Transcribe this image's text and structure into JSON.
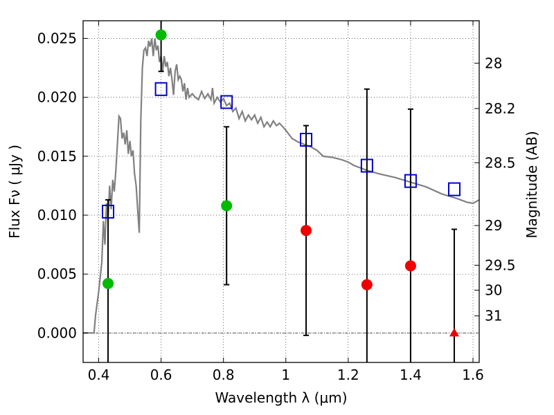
{
  "chart_data": {
    "type": "scatter",
    "xlabel": "Wavelength  λ (μm)",
    "ylabel": "Flux  Fν  ( μJy )",
    "ylabel2": "Magnitude (AB)",
    "xlim": [
      0.35,
      1.62
    ],
    "ylim": [
      -0.0025,
      0.0265
    ],
    "grid": true,
    "x_ticks": [
      {
        "v": 0.4,
        "label": "0.4"
      },
      {
        "v": 0.6,
        "label": "0.6"
      },
      {
        "v": 0.8,
        "label": "0.8"
      },
      {
        "v": 1.0,
        "label": "1"
      },
      {
        "v": 1.2,
        "label": "1.2"
      },
      {
        "v": 1.4,
        "label": "1.4"
      },
      {
        "v": 1.6,
        "label": "1.6"
      }
    ],
    "y_ticks": [
      {
        "v": 0.0,
        "label": "0.000"
      },
      {
        "v": 0.005,
        "label": "0.005"
      },
      {
        "v": 0.01,
        "label": "0.010"
      },
      {
        "v": 0.015,
        "label": "0.015"
      },
      {
        "v": 0.02,
        "label": "0.020"
      },
      {
        "v": 0.025,
        "label": "0.025"
      }
    ],
    "mag_ticks": [
      {
        "v": 0.0229,
        "label": "28"
      },
      {
        "v": 0.01905,
        "label": "28.2"
      },
      {
        "v": 0.01445,
        "label": "28.5"
      },
      {
        "v": 0.00912,
        "label": "29"
      },
      {
        "v": 0.00575,
        "label": "29.5"
      },
      {
        "v": 0.00363,
        "label": "30"
      },
      {
        "v": 0.00145,
        "label": "31"
      }
    ],
    "series": [
      {
        "kind": "sed_model",
        "color": "#808080",
        "points": [
          [
            0.35,
            0.0
          ],
          [
            0.385,
            0.0
          ],
          [
            0.39,
            0.0015
          ],
          [
            0.4,
            0.0035
          ],
          [
            0.41,
            0.006
          ],
          [
            0.415,
            0.0095
          ],
          [
            0.42,
            0.0075
          ],
          [
            0.425,
            0.011
          ],
          [
            0.43,
            0.0095
          ],
          [
            0.435,
            0.0125
          ],
          [
            0.44,
            0.0105
          ],
          [
            0.445,
            0.013
          ],
          [
            0.45,
            0.012
          ],
          [
            0.455,
            0.0138
          ],
          [
            0.46,
            0.016
          ],
          [
            0.465,
            0.0184
          ],
          [
            0.47,
            0.0182
          ],
          [
            0.475,
            0.0165
          ],
          [
            0.48,
            0.017
          ],
          [
            0.485,
            0.016
          ],
          [
            0.49,
            0.0172
          ],
          [
            0.495,
            0.0152
          ],
          [
            0.5,
            0.0163
          ],
          [
            0.505,
            0.015
          ],
          [
            0.51,
            0.0155
          ],
          [
            0.515,
            0.0135
          ],
          [
            0.52,
            0.0125
          ],
          [
            0.525,
            0.0105
          ],
          [
            0.53,
            0.0085
          ],
          [
            0.535,
            0.018
          ],
          [
            0.54,
            0.0225
          ],
          [
            0.545,
            0.024
          ],
          [
            0.55,
            0.0242
          ],
          [
            0.555,
            0.0235
          ],
          [
            0.56,
            0.0248
          ],
          [
            0.565,
            0.0243
          ],
          [
            0.57,
            0.025
          ],
          [
            0.575,
            0.0235
          ],
          [
            0.58,
            0.025
          ],
          [
            0.585,
            0.024
          ],
          [
            0.59,
            0.0244
          ],
          [
            0.595,
            0.023
          ],
          [
            0.6,
            0.0235
          ],
          [
            0.605,
            0.0222
          ],
          [
            0.61,
            0.0235
          ],
          [
            0.615,
            0.0226
          ],
          [
            0.62,
            0.023
          ],
          [
            0.625,
            0.0218
          ],
          [
            0.63,
            0.0225
          ],
          [
            0.635,
            0.0215
          ],
          [
            0.64,
            0.0202
          ],
          [
            0.645,
            0.0222
          ],
          [
            0.65,
            0.0228
          ],
          [
            0.655,
            0.0215
          ],
          [
            0.66,
            0.0218
          ],
          [
            0.665,
            0.0215
          ],
          [
            0.67,
            0.0205
          ],
          [
            0.675,
            0.0212
          ],
          [
            0.68,
            0.0198
          ],
          [
            0.685,
            0.0208
          ],
          [
            0.69,
            0.02
          ],
          [
            0.7,
            0.0203
          ],
          [
            0.71,
            0.02
          ],
          [
            0.72,
            0.0198
          ],
          [
            0.73,
            0.0205
          ],
          [
            0.74,
            0.0199
          ],
          [
            0.75,
            0.0203
          ],
          [
            0.76,
            0.0198
          ],
          [
            0.765,
            0.0208
          ],
          [
            0.77,
            0.0195
          ],
          [
            0.78,
            0.02
          ],
          [
            0.79,
            0.0196
          ],
          [
            0.8,
            0.0199
          ],
          [
            0.81,
            0.0193
          ],
          [
            0.82,
            0.0195
          ],
          [
            0.83,
            0.0188
          ],
          [
            0.84,
            0.0191
          ],
          [
            0.85,
            0.0182
          ],
          [
            0.86,
            0.0188
          ],
          [
            0.87,
            0.018
          ],
          [
            0.88,
            0.0185
          ],
          [
            0.89,
            0.0181
          ],
          [
            0.9,
            0.0185
          ],
          [
            0.91,
            0.0178
          ],
          [
            0.92,
            0.0183
          ],
          [
            0.93,
            0.0175
          ],
          [
            0.94,
            0.0179
          ],
          [
            0.95,
            0.0175
          ],
          [
            0.96,
            0.018
          ],
          [
            0.97,
            0.0176
          ],
          [
            0.98,
            0.0178
          ],
          [
            0.99,
            0.0175
          ],
          [
            1.0,
            0.0172
          ],
          [
            1.02,
            0.0165
          ],
          [
            1.04,
            0.0162
          ],
          [
            1.06,
            0.016
          ],
          [
            1.08,
            0.0158
          ],
          [
            1.1,
            0.0155
          ],
          [
            1.12,
            0.015
          ],
          [
            1.15,
            0.0149
          ],
          [
            1.18,
            0.0147
          ],
          [
            1.2,
            0.0145
          ],
          [
            1.22,
            0.0142
          ],
          [
            1.24,
            0.014
          ],
          [
            1.26,
            0.0138
          ],
          [
            1.3,
            0.0135
          ],
          [
            1.35,
            0.0132
          ],
          [
            1.4,
            0.0128
          ],
          [
            1.45,
            0.0124
          ],
          [
            1.5,
            0.0118
          ],
          [
            1.55,
            0.0114
          ],
          [
            1.58,
            0.0111
          ],
          [
            1.6,
            0.011
          ],
          [
            1.62,
            0.0113
          ]
        ]
      },
      {
        "kind": "model_squares",
        "color": "#0000cc",
        "points": [
          [
            0.43,
            0.0103
          ],
          [
            0.6,
            0.0207
          ],
          [
            0.81,
            0.0196
          ],
          [
            1.065,
            0.0164
          ],
          [
            1.26,
            0.0142
          ],
          [
            1.4,
            0.0129
          ],
          [
            1.54,
            0.0122
          ]
        ]
      },
      {
        "kind": "green_points",
        "color": "#00bb00",
        "points": [
          {
            "x": 0.43,
            "y": 0.0042,
            "lo": -0.0025,
            "hi": 0.0113
          },
          {
            "x": 0.6,
            "y": 0.0253,
            "lo": 0.0222,
            "hi": 0.0265
          },
          {
            "x": 0.81,
            "y": 0.0108,
            "lo": 0.0041,
            "hi": 0.0175
          }
        ]
      },
      {
        "kind": "red_points",
        "color": "#ee0000",
        "points": [
          {
            "x": 1.065,
            "y": 0.0087,
            "lo": -0.0002,
            "hi": 0.0176
          },
          {
            "x": 1.26,
            "y": 0.0041,
            "lo": -0.0025,
            "hi": 0.0207
          },
          {
            "x": 1.4,
            "y": 0.0057,
            "lo": -0.0025,
            "hi": 0.019
          },
          {
            "x": 1.54,
            "y": 0.0,
            "lo": -0.0025,
            "hi": 0.0088,
            "marker": "triangle"
          }
        ]
      }
    ]
  }
}
